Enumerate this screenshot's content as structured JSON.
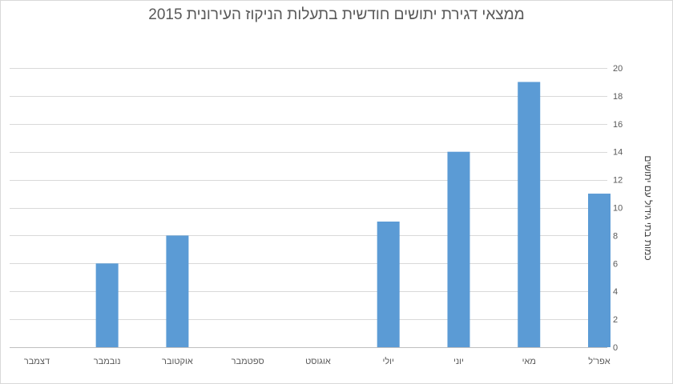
{
  "chart_data": {
    "type": "bar",
    "title": "ממצאי דגירת יתושים חודשית בתעלות הניקוז העירונית 2015",
    "xlabel": "",
    "ylabel": "כמות בתי גידול עם יתושים",
    "categories": [
      "אפר'ל",
      "מאי",
      "יוני",
      "יולי",
      "אוגוסט",
      "ספטמבר",
      "אוקטובר",
      "נובמבר",
      "דצמבר"
    ],
    "values": [
      11,
      19,
      14,
      9,
      0,
      0,
      8,
      6,
      0
    ],
    "ylim": [
      0,
      20
    ],
    "yticks": [
      0,
      2,
      4,
      6,
      8,
      10,
      12,
      14,
      16,
      18,
      20
    ],
    "y_axis_side": "right",
    "x_direction": "right-to-left",
    "grid": true,
    "legend": "none",
    "bar_color": "#5b9bd5",
    "grid_color": "#d9d9d9"
  }
}
